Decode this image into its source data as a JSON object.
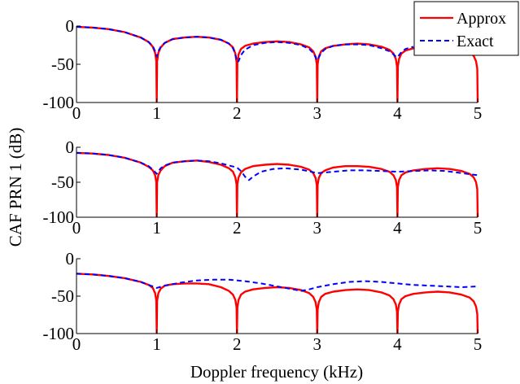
{
  "chart_data": {
    "type": "line",
    "xlabel": "Doppler frequency (kHz)",
    "ylabel": "CAF PRN 1 (dB)",
    "legend": {
      "placement": "top-right",
      "entries": [
        "Approx",
        "Exact"
      ]
    },
    "colors": {
      "approx": "#ff0000",
      "exact": "#0000ff"
    },
    "panels": [
      {
        "xlim": [
          0,
          5
        ],
        "ylim": [
          -100,
          0
        ],
        "xticks": [
          0,
          1,
          2,
          3,
          4,
          5
        ],
        "yticks": [
          0,
          -50,
          -100
        ],
        "series": [
          {
            "name": "Approx",
            "style": "solid",
            "x": [
              0,
              0.2,
              0.4,
              0.6,
              0.8,
              0.9,
              0.95,
              0.98,
              0.995,
              1.0,
              1.005,
              1.02,
              1.05,
              1.1,
              1.2,
              1.35,
              1.5,
              1.65,
              1.8,
              1.9,
              1.95,
              1.98,
              1.995,
              2.0,
              2.005,
              2.02,
              2.05,
              2.1,
              2.2,
              2.35,
              2.5,
              2.65,
              2.8,
              2.9,
              2.95,
              2.98,
              2.995,
              3.0,
              3.005,
              3.02,
              3.05,
              3.1,
              3.2,
              3.35,
              3.5,
              3.65,
              3.8,
              3.9,
              3.95,
              3.98,
              3.995,
              4.0,
              4.005,
              4.02,
              4.05,
              4.1,
              4.2,
              4.35,
              4.5,
              4.65,
              4.8,
              4.9,
              4.95,
              4.98,
              4.995,
              5.0
            ],
            "y": [
              -1,
              -2,
              -4,
              -8,
              -15,
              -21,
              -27,
              -35,
              -46,
              -100,
              -46,
              -35,
              -28,
              -22,
              -17,
              -15,
              -14,
              -15,
              -18,
              -23,
              -28,
              -36,
              -47,
              -100,
              -47,
              -37,
              -30,
              -26,
              -23,
              -21,
              -20,
              -21,
              -24,
              -28,
              -33,
              -40,
              -50,
              -100,
              -50,
              -40,
              -33,
              -29,
              -26,
              -24,
              -23,
              -24,
              -27,
              -31,
              -36,
              -43,
              -53,
              -100,
              -53,
              -43,
              -36,
              -32,
              -29,
              -27,
              -26,
              -27,
              -30,
              -34,
              -39,
              -46,
              -56,
              -100
            ]
          },
          {
            "name": "Exact",
            "style": "dashed",
            "x": [
              0,
              0.2,
              0.4,
              0.6,
              0.8,
              0.9,
              0.95,
              0.98,
              1.0,
              1.02,
              1.05,
              1.1,
              1.2,
              1.35,
              1.5,
              1.65,
              1.8,
              1.9,
              1.95,
              1.98,
              2.0,
              2.02,
              2.05,
              2.1,
              2.2,
              2.35,
              2.5,
              2.65,
              2.8,
              2.9,
              2.95,
              2.98,
              3.0,
              3.02,
              3.05,
              3.1,
              3.2,
              3.35,
              3.5,
              3.65,
              3.8,
              3.9,
              3.95,
              3.98,
              4.0,
              4.02,
              4.05,
              4.1,
              4.2
            ],
            "y": [
              -1,
              -2,
              -4,
              -8,
              -15,
              -21,
              -26,
              -33,
              -40,
              -33,
              -27,
              -22,
              -17,
              -15,
              -14,
              -15,
              -18,
              -23,
              -29,
              -37,
              -47,
              -46,
              -38,
              -31,
              -25,
              -22,
              -21,
              -22,
              -25,
              -30,
              -35,
              -41,
              -45,
              -41,
              -35,
              -30,
              -26,
              -24,
              -24,
              -25,
              -29,
              -33,
              -37,
              -40,
              -41,
              -38,
              -34,
              -30,
              -27
            ]
          }
        ]
      },
      {
        "xlim": [
          0,
          5
        ],
        "ylim": [
          -100,
          0
        ],
        "xticks": [
          0,
          1,
          2,
          3,
          4,
          5
        ],
        "yticks": [
          0,
          -50,
          -100
        ],
        "series": [
          {
            "name": "Approx",
            "style": "solid",
            "x": [
              0,
              0.2,
              0.4,
              0.6,
              0.8,
              0.9,
              0.95,
              0.98,
              0.995,
              1.0,
              1.005,
              1.02,
              1.05,
              1.1,
              1.2,
              1.35,
              1.5,
              1.65,
              1.8,
              1.9,
              1.95,
              1.98,
              1.995,
              2.0,
              2.005,
              2.02,
              2.05,
              2.1,
              2.2,
              2.35,
              2.5,
              2.65,
              2.8,
              2.9,
              2.95,
              2.98,
              2.995,
              3.0,
              3.005,
              3.02,
              3.05,
              3.1,
              3.2,
              3.35,
              3.5,
              3.65,
              3.8,
              3.9,
              3.95,
              3.98,
              3.995,
              4.0,
              4.005,
              4.02,
              4.05,
              4.1,
              4.2,
              4.35,
              4.5,
              4.65,
              4.8,
              4.9,
              4.95,
              4.98,
              4.995,
              5.0
            ],
            "y": [
              -8,
              -9,
              -11,
              -15,
              -22,
              -28,
              -33,
              -40,
              -50,
              -100,
              -50,
              -40,
              -33,
              -27,
              -22,
              -20,
              -19,
              -21,
              -25,
              -30,
              -35,
              -43,
              -53,
              -100,
              -53,
              -43,
              -36,
              -31,
              -27,
              -25,
              -24,
              -25,
              -28,
              -32,
              -37,
              -44,
              -54,
              -100,
              -54,
              -44,
              -37,
              -33,
              -29,
              -27,
              -27,
              -28,
              -31,
              -35,
              -40,
              -47,
              -57,
              -100,
              -57,
              -47,
              -40,
              -36,
              -33,
              -31,
              -30,
              -31,
              -34,
              -38,
              -43,
              -50,
              -60,
              -100
            ]
          },
          {
            "name": "Exact",
            "style": "dashed",
            "x": [
              0,
              0.2,
              0.4,
              0.6,
              0.8,
              0.9,
              0.95,
              1.0,
              1.05,
              1.1,
              1.2,
              1.35,
              1.5,
              1.65,
              1.8,
              1.9,
              2.0,
              2.05,
              2.1,
              2.15,
              2.2,
              2.3,
              2.45,
              2.6,
              2.8,
              3.0,
              3.2,
              3.4,
              3.6,
              3.8,
              4.0,
              4.2,
              4.4,
              4.6,
              4.8,
              5.0
            ],
            "y": [
              -8,
              -9,
              -11,
              -15,
              -22,
              -27,
              -32,
              -38,
              -30,
              -26,
              -22,
              -20,
              -19,
              -20,
              -23,
              -26,
              -29,
              -34,
              -42,
              -47,
              -42,
              -35,
              -31,
              -30,
              -32,
              -37,
              -35,
              -33,
              -33,
              -34,
              -35,
              -34,
              -33,
              -34,
              -37,
              -40
            ]
          }
        ]
      },
      {
        "xlim": [
          0,
          5
        ],
        "ylim": [
          -100,
          0
        ],
        "xticks": [
          0,
          1,
          2,
          3,
          4,
          5
        ],
        "yticks": [
          0,
          -50,
          -100
        ],
        "series": [
          {
            "name": "Approx",
            "style": "solid",
            "x": [
              0,
              0.2,
              0.4,
              0.6,
              0.8,
              0.9,
              0.95,
              0.98,
              0.995,
              1.0,
              1.005,
              1.02,
              1.05,
              1.1,
              1.2,
              1.35,
              1.5,
              1.65,
              1.8,
              1.9,
              1.95,
              1.98,
              1.995,
              2.0,
              2.005,
              2.02,
              2.05,
              2.1,
              2.2,
              2.35,
              2.5,
              2.65,
              2.8,
              2.9,
              2.95,
              2.98,
              2.995,
              3.0,
              3.005,
              3.02,
              3.05,
              3.1,
              3.2,
              3.35,
              3.5,
              3.65,
              3.8,
              3.9,
              3.95,
              3.98,
              3.995,
              4.0,
              4.005,
              4.02,
              4.05,
              4.1,
              4.2,
              4.35,
              4.5,
              4.65,
              4.8,
              4.9,
              4.95,
              4.98,
              4.995,
              5.0
            ],
            "y": [
              -20,
              -21,
              -23,
              -26,
              -31,
              -35,
              -39,
              -46,
              -56,
              -100,
              -56,
              -46,
              -40,
              -36,
              -34,
              -33,
              -33,
              -34,
              -38,
              -43,
              -48,
              -55,
              -65,
              -100,
              -65,
              -55,
              -48,
              -44,
              -41,
              -39,
              -38,
              -39,
              -42,
              -46,
              -51,
              -58,
              -68,
              -100,
              -68,
              -58,
              -51,
              -47,
              -44,
              -42,
              -41,
              -42,
              -45,
              -49,
              -54,
              -61,
              -71,
              -100,
              -71,
              -61,
              -54,
              -50,
              -47,
              -45,
              -44,
              -45,
              -48,
              -52,
              -57,
              -64,
              -74,
              -100
            ]
          },
          {
            "name": "Exact",
            "style": "dashed",
            "x": [
              0,
              0.2,
              0.4,
              0.6,
              0.8,
              0.9,
              1.0,
              1.1,
              1.3,
              1.5,
              1.7,
              1.9,
              2.1,
              2.3,
              2.5,
              2.7,
              2.8,
              2.9,
              3.0,
              3.2,
              3.4,
              3.6,
              3.8,
              4.0,
              4.2,
              4.4,
              4.6,
              4.8,
              5.0
            ],
            "y": [
              -20,
              -21,
              -23,
              -26,
              -31,
              -35,
              -39,
              -36,
              -32,
              -29,
              -28,
              -28,
              -30,
              -33,
              -37,
              -41,
              -43,
              -41,
              -38,
              -34,
              -31,
              -30,
              -31,
              -33,
              -35,
              -36,
              -37,
              -38,
              -37
            ]
          }
        ]
      }
    ]
  }
}
